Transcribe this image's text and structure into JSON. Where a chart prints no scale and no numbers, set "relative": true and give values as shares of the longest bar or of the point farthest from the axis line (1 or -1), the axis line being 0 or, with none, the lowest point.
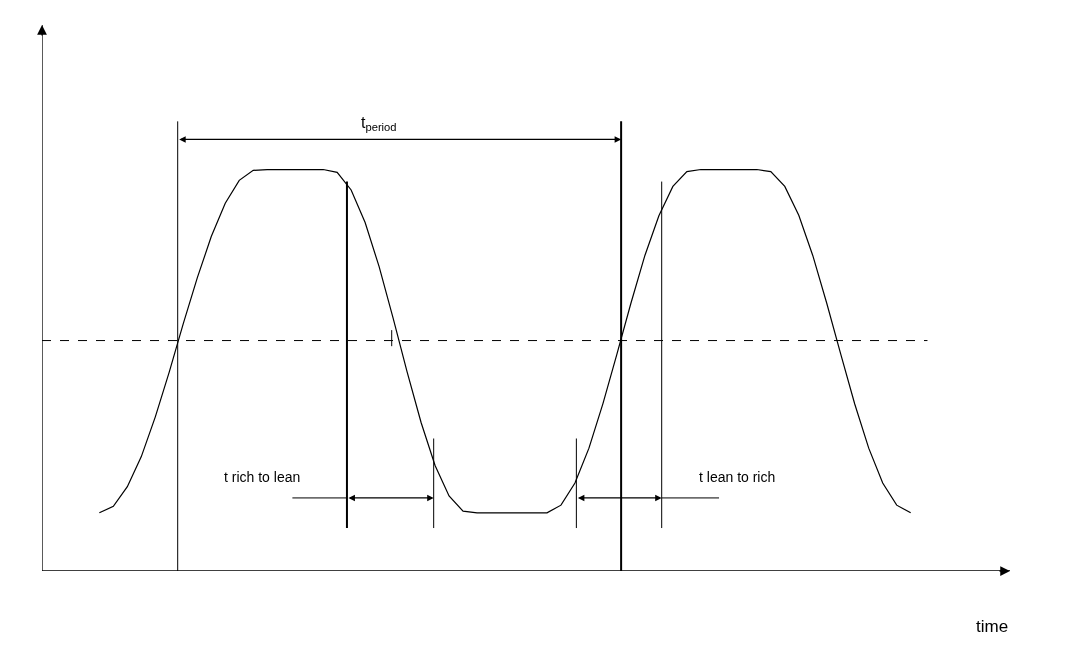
{
  "chart_data": {
    "type": "line",
    "relative": true,
    "xlabel": "time",
    "color": "#000000",
    "line_style": "solid",
    "marker": "none",
    "legend": false,
    "categories": [
      null,
      null,
      null,
      null,
      null,
      null,
      null,
      null,
      null,
      null,
      null,
      null,
      null,
      null,
      null,
      null,
      null,
      null,
      null,
      null,
      null,
      null,
      null,
      null,
      null,
      null,
      null,
      null,
      null,
      null,
      null,
      null,
      null,
      null,
      null,
      null,
      null,
      null,
      null,
      null,
      null,
      null,
      null,
      null,
      null,
      null,
      null,
      null,
      null,
      null,
      null,
      null,
      null,
      null,
      null,
      null,
      null,
      null,
      null
    ],
    "values": [
      0.145,
      0.161,
      0.21,
      0.285,
      0.384,
      0.496,
      0.616,
      0.73,
      0.833,
      0.916,
      0.973,
      0.998,
      1,
      1,
      1,
      1,
      1,
      0.993,
      0.949,
      0.868,
      0.758,
      0.63,
      0.496,
      0.37,
      0.263,
      0.187,
      0.149,
      0.145,
      0.145,
      0.145,
      0.145,
      0.145,
      0.145,
      0.164,
      0.219,
      0.306,
      0.417,
      0.54,
      0.667,
      0.786,
      0.885,
      0.958,
      0.995,
      1,
      1,
      1,
      1,
      1,
      0.995,
      0.958,
      0.886,
      0.786,
      0.667,
      0.54,
      0.416,
      0.306,
      0.219,
      0.164,
      0.145
    ],
    "ref_lines": [
      {
        "axis": "y",
        "value": 0.574,
        "color": "#000000",
        "line_style": "dashed"
      }
    ],
    "annotations": [
      "t$_{period}$",
      "t rich to lean",
      "t lean to rich"
    ]
  }
}
